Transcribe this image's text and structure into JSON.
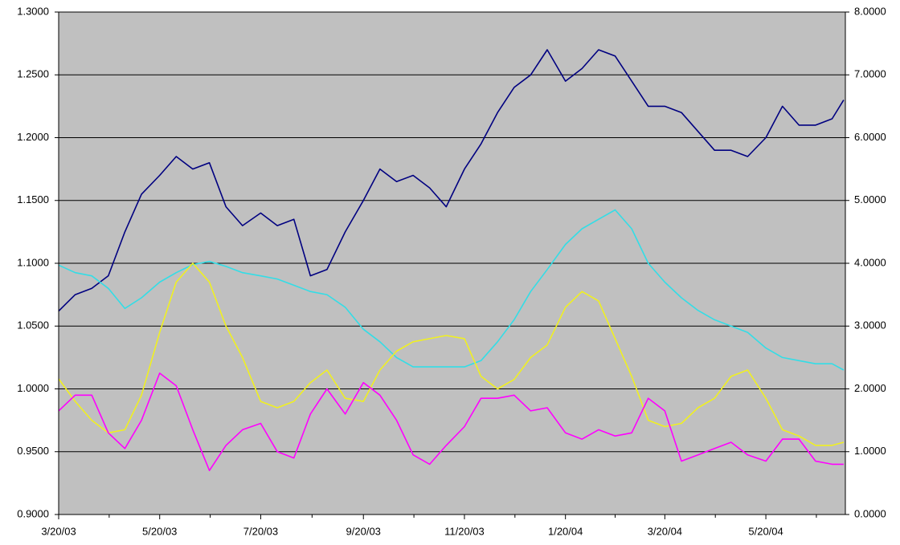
{
  "chart_data": {
    "type": "line",
    "x": [
      "3/20/03",
      "3/30/03",
      "4/9/03",
      "4/19/03",
      "4/29/03",
      "5/9/03",
      "5/20/03",
      "5/30/03",
      "6/9/03",
      "6/19/03",
      "6/29/03",
      "7/9/03",
      "7/20/03",
      "7/30/03",
      "8/9/03",
      "8/19/03",
      "8/29/03",
      "9/9/03",
      "9/20/03",
      "9/30/03",
      "10/10/03",
      "10/20/03",
      "10/30/03",
      "11/9/03",
      "11/20/03",
      "11/30/03",
      "12/10/03",
      "12/20/03",
      "12/30/03",
      "1/9/04",
      "1/20/04",
      "1/30/04",
      "2/9/04",
      "2/19/04",
      "2/29/04",
      "3/10/04",
      "3/20/04",
      "3/30/04",
      "4/9/04",
      "4/19/04",
      "4/29/04",
      "5/9/04",
      "5/20/04",
      "5/30/04",
      "6/9/04",
      "6/19/04",
      "6/29/04",
      "7/6/04"
    ],
    "xlim": [
      "3/20/03",
      "7/7/04"
    ],
    "xticks": [
      "3/20/03",
      "5/20/03",
      "7/20/03",
      "9/20/03",
      "11/20/03",
      "1/20/04",
      "3/20/04",
      "5/20/04"
    ],
    "ylim": [
      0.9,
      1.3
    ],
    "yticks": [
      {
        "value": 0.9,
        "label": "0.9000"
      },
      {
        "value": 0.95,
        "label": "0.9500"
      },
      {
        "value": 1.0,
        "label": "1.0000"
      },
      {
        "value": 1.05,
        "label": "1.0500"
      },
      {
        "value": 1.1,
        "label": "1.1000"
      },
      {
        "value": 1.15,
        "label": "1.1500"
      },
      {
        "value": 1.2,
        "label": "1.2000"
      },
      {
        "value": 1.25,
        "label": "1.2500"
      },
      {
        "value": 1.3,
        "label": "1.3000"
      }
    ],
    "y2lim": [
      0,
      8
    ],
    "y2ticks": [
      {
        "value": 0,
        "label": "0.0000"
      },
      {
        "value": 1,
        "label": "1.0000"
      },
      {
        "value": 2,
        "label": "2.0000"
      },
      {
        "value": 3,
        "label": "3.0000"
      },
      {
        "value": 4,
        "label": "4.0000"
      },
      {
        "value": 5,
        "label": "5.0000"
      },
      {
        "value": 6,
        "label": "6.0000"
      },
      {
        "value": 7,
        "label": "7.0000"
      },
      {
        "value": 8,
        "label": "8.0000"
      }
    ],
    "grid": true,
    "background": "#c0c0c0",
    "series": [
      {
        "color": "#000080",
        "values": [
          1.062,
          1.075,
          1.08,
          1.09,
          1.125,
          1.155,
          1.17,
          1.185,
          1.175,
          1.18,
          1.145,
          1.13,
          1.14,
          1.13,
          1.135,
          1.09,
          1.095,
          1.125,
          1.15,
          1.175,
          1.165,
          1.17,
          1.16,
          1.145,
          1.175,
          1.195,
          1.22,
          1.24,
          1.25,
          1.27,
          1.245,
          1.255,
          1.27,
          1.265,
          1.245,
          1.225,
          1.225,
          1.22,
          1.205,
          1.19,
          1.19,
          1.185,
          1.2,
          1.225,
          1.21,
          1.21,
          1.215,
          1.23
        ]
      },
      {
        "color": "#33dde6",
        "axis": "y2",
        "values": [
          3.97,
          3.85,
          3.8,
          3.6,
          3.28,
          3.45,
          3.7,
          3.85,
          3.98,
          4.03,
          3.95,
          3.85,
          3.8,
          3.75,
          3.65,
          3.55,
          3.5,
          3.3,
          2.95,
          2.75,
          2.5,
          2.35,
          2.35,
          2.35,
          2.35,
          2.45,
          2.75,
          3.1,
          3.55,
          3.9,
          4.3,
          4.55,
          4.7,
          4.85,
          4.55,
          4.0,
          3.7,
          3.45,
          3.25,
          3.1,
          3.0,
          2.9,
          2.65,
          2.5,
          2.45,
          2.4,
          2.4,
          2.3
        ]
      },
      {
        "color": "#f0f020",
        "axis": "y2",
        "values": [
          2.16,
          1.8,
          1.5,
          1.3,
          1.35,
          1.9,
          2.9,
          3.7,
          4.0,
          3.7,
          3.0,
          2.5,
          1.8,
          1.7,
          1.8,
          2.1,
          2.3,
          1.85,
          1.8,
          2.3,
          2.6,
          2.75,
          2.8,
          2.85,
          2.8,
          2.2,
          2.0,
          2.15,
          2.5,
          2.7,
          3.3,
          3.55,
          3.4,
          2.8,
          2.2,
          1.5,
          1.4,
          1.45,
          1.7,
          1.85,
          2.2,
          2.3,
          1.85,
          1.35,
          1.25,
          1.1,
          1.1,
          1.15
        ]
      },
      {
        "color": "#ff00ff",
        "axis": "y2",
        "values": [
          1.65,
          1.9,
          1.9,
          1.3,
          1.05,
          1.5,
          2.25,
          2.05,
          1.35,
          0.7,
          1.1,
          1.35,
          1.45,
          1.0,
          0.9,
          1.6,
          2.0,
          1.6,
          2.1,
          1.9,
          1.5,
          0.95,
          0.8,
          1.1,
          1.4,
          1.85,
          1.85,
          1.9,
          1.65,
          1.7,
          1.3,
          1.2,
          1.35,
          1.25,
          1.3,
          1.85,
          1.65,
          0.85,
          0.95,
          1.05,
          1.15,
          0.95,
          0.85,
          1.2,
          1.2,
          0.85,
          0.8,
          0.8
        ]
      }
    ]
  }
}
